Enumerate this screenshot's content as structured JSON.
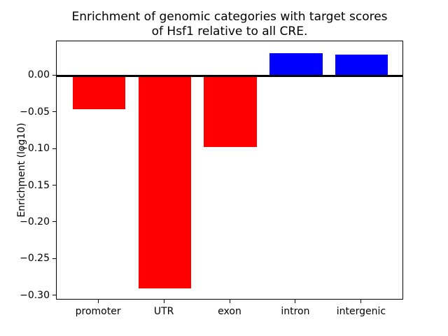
{
  "figure": {
    "background_color": "#ffffff",
    "text_color": "#000000"
  },
  "chart_data": {
    "type": "bar",
    "title": "Enrichment of genomic categories with target scores\nof Hsf1 relative to all CRE.",
    "xlabel": "",
    "ylabel": "Enrichment (log10)",
    "categories": [
      "promoter",
      "UTR",
      "exon",
      "intron",
      "intergenic"
    ],
    "values": [
      -0.046,
      -0.29,
      -0.097,
      0.031,
      0.029
    ],
    "bar_colors": [
      "#ff0000",
      "#ff0000",
      "#ff0000",
      "#0000ff",
      "#0000ff"
    ],
    "negative_color": "#ff0000",
    "positive_color": "#0000ff",
    "ylim": [
      -0.306,
      0.047
    ],
    "xlim": [
      -0.64,
      4.64
    ],
    "bar_width": 0.8,
    "yticks": [
      0.0,
      -0.05,
      -0.1,
      -0.15,
      -0.2,
      -0.25,
      -0.3
    ],
    "ytick_labels": [
      "0.00",
      "−0.05",
      "−0.10",
      "−0.15",
      "−0.20",
      "−0.25",
      "−0.30"
    ],
    "zero_line": true,
    "zero_line_color": "#000000",
    "grid": false,
    "legend": null
  }
}
